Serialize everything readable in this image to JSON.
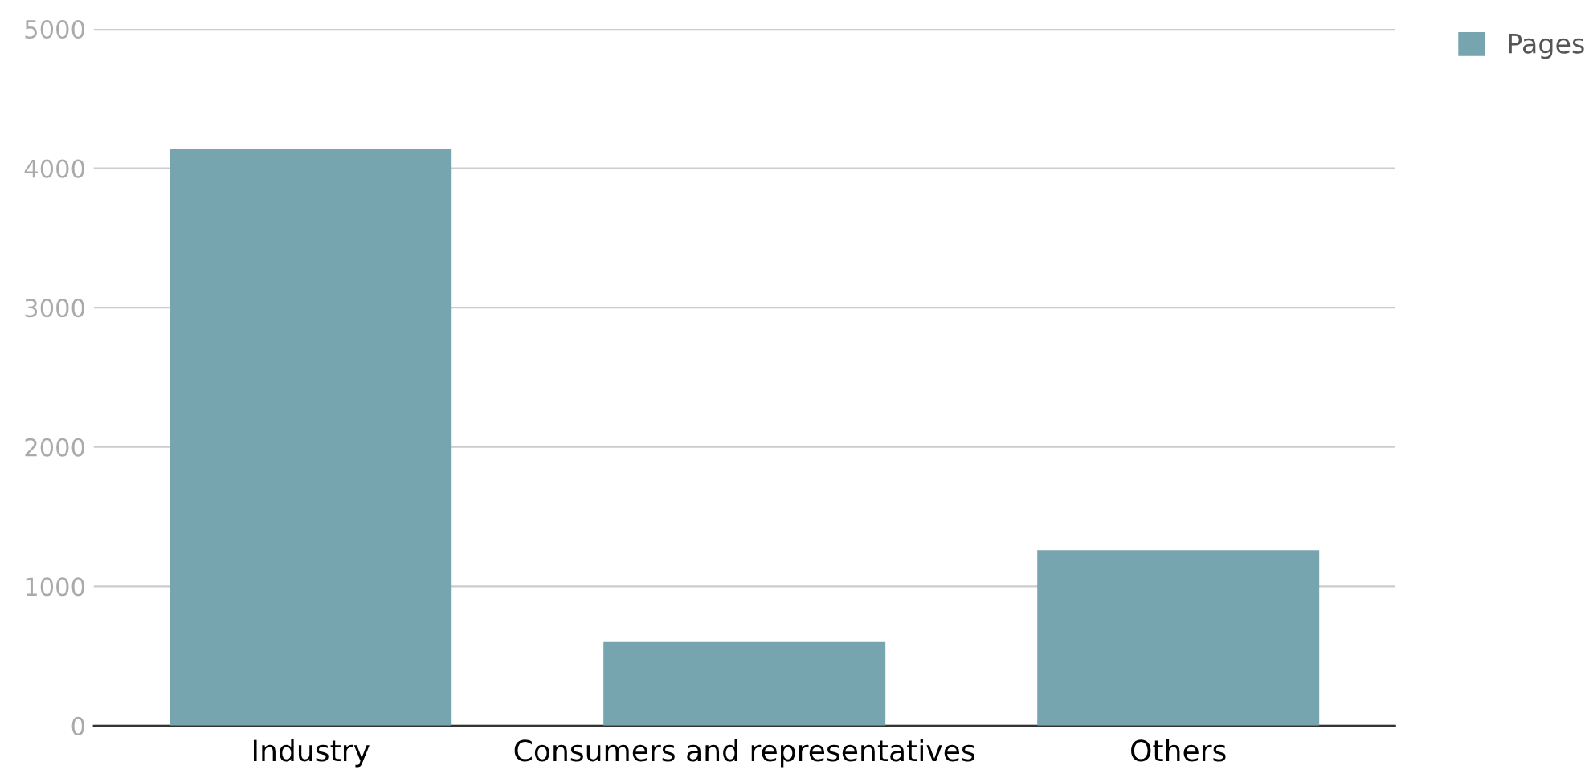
{
  "chart_data": {
    "type": "bar",
    "categories": [
      "Industry",
      "Consumers and representatives",
      "Others"
    ],
    "series": [
      {
        "name": "Pages",
        "color": "#76a5af",
        "values": [
          4140,
          600,
          1260
        ]
      }
    ],
    "ylim": [
      0,
      5000
    ],
    "yticks": [
      0,
      1000,
      2000,
      3000,
      4000,
      5000
    ],
    "grid": "y",
    "legend": "top right"
  }
}
